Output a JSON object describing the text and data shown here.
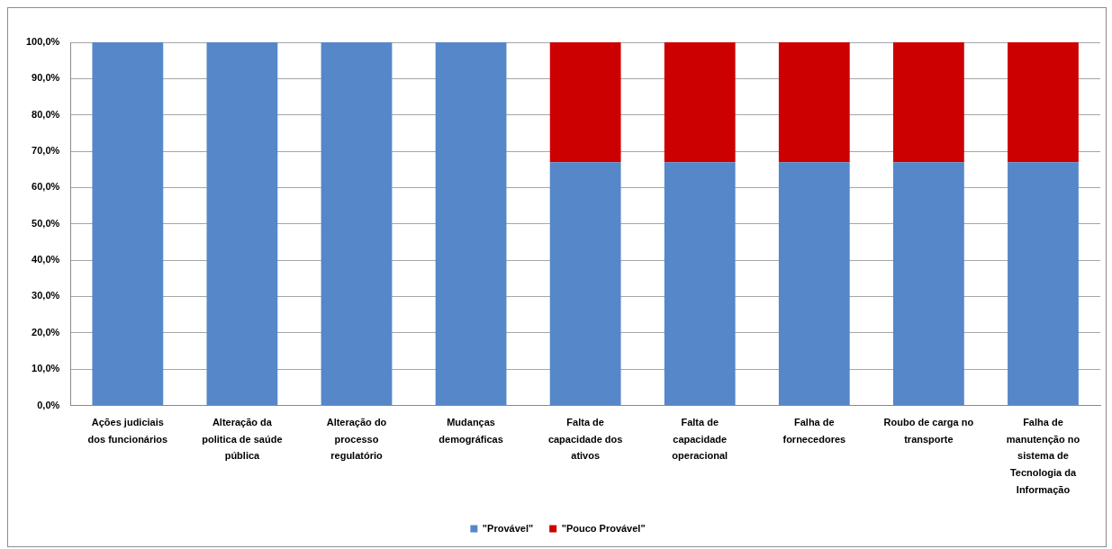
{
  "chart_data": {
    "type": "bar",
    "stacked": true,
    "categories": [
      "Ações judiciais dos funcionários",
      "Alteração da politica de saúde pública",
      "Alteração do processo regulatório",
      "Mudanças demográficas",
      "Falta de capacidade dos ativos",
      "Falta de capacidade operacional",
      "Falha de fornecedores",
      "Roubo de carga no transporte",
      "Falha de manutenção no sistema de Tecnologia da Informação"
    ],
    "series": [
      {
        "name": "\"Provável\"",
        "color": "#5587c9",
        "values": [
          100,
          100,
          100,
          100,
          67,
          67,
          67,
          67,
          67
        ]
      },
      {
        "name": "\"Pouco Provável\"",
        "color": "#cc0000",
        "values": [
          null,
          null,
          null,
          null,
          33,
          33,
          33,
          33,
          33
        ]
      }
    ],
    "ylim": [
      0,
      100
    ],
    "yticks": [
      {
        "value": 0,
        "label": "0,0%"
      },
      {
        "value": 10,
        "label": "10,0%"
      },
      {
        "value": 20,
        "label": "20,0%"
      },
      {
        "value": 30,
        "label": "30,0%"
      },
      {
        "value": 40,
        "label": "40,0%"
      },
      {
        "value": 50,
        "label": "50,0%"
      },
      {
        "value": 60,
        "label": "60,0%"
      },
      {
        "value": 70,
        "label": "70,0%"
      },
      {
        "value": 80,
        "label": "80,0%"
      },
      {
        "value": 90,
        "label": "90,0%"
      },
      {
        "value": 100,
        "label": "100,0%"
      }
    ],
    "grid": "y",
    "legend": "bottom"
  }
}
